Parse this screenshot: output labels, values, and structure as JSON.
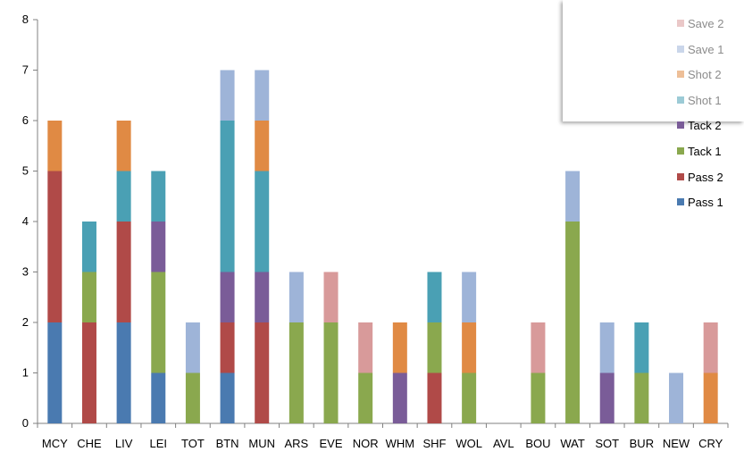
{
  "chart_data": {
    "type": "bar",
    "stacked": true,
    "categories": [
      "MCY",
      "CHE",
      "LIV",
      "LEI",
      "TOT",
      "BTN",
      "MUN",
      "ARS",
      "EVE",
      "NOR",
      "WHM",
      "SHF",
      "WOL",
      "AVL",
      "BOU",
      "WAT",
      "SOT",
      "BUR",
      "NEW",
      "CRY"
    ],
    "series": [
      {
        "name": "Pass 1",
        "color": "#4a7ab0",
        "values": [
          2,
          0,
          2,
          1,
          0,
          1,
          0,
          0,
          0,
          0,
          0,
          0,
          0,
          0,
          0,
          0,
          0,
          0,
          0,
          0
        ]
      },
      {
        "name": "Pass 2",
        "color": "#b04a48",
        "values": [
          3,
          2,
          2,
          0,
          0,
          1,
          2,
          0,
          0,
          0,
          0,
          1,
          0,
          0,
          0,
          0,
          0,
          0,
          0,
          0
        ]
      },
      {
        "name": "Tack 1",
        "color": "#8aa84e",
        "values": [
          0,
          1,
          0,
          2,
          1,
          0,
          0,
          2,
          2,
          1,
          0,
          1,
          1,
          0,
          1,
          4,
          0,
          1,
          0,
          0
        ]
      },
      {
        "name": "Tack 2",
        "color": "#7a5c98",
        "values": [
          0,
          0,
          0,
          1,
          0,
          1,
          1,
          0,
          0,
          0,
          1,
          0,
          0,
          0,
          0,
          0,
          1,
          0,
          0,
          0
        ]
      },
      {
        "name": "Shot 1",
        "color": "#4aa0b4",
        "values": [
          0,
          1,
          1,
          1,
          0,
          3,
          2,
          0,
          0,
          0,
          0,
          1,
          0,
          0,
          0,
          0,
          0,
          1,
          0,
          0
        ]
      },
      {
        "name": "Shot 2",
        "color": "#e08a44",
        "values": [
          1,
          0,
          1,
          0,
          0,
          0,
          1,
          0,
          0,
          0,
          1,
          0,
          1,
          0,
          0,
          0,
          0,
          0,
          0,
          1
        ]
      },
      {
        "name": "Save 1",
        "color": "#9eb4d8",
        "values": [
          0,
          0,
          0,
          0,
          1,
          1,
          1,
          1,
          0,
          0,
          0,
          0,
          1,
          0,
          0,
          1,
          1,
          0,
          1,
          0
        ]
      },
      {
        "name": "Save 2",
        "color": "#d89a9a",
        "values": [
          0,
          0,
          0,
          0,
          0,
          0,
          0,
          0,
          1,
          1,
          0,
          0,
          0,
          0,
          1,
          0,
          0,
          0,
          0,
          1
        ]
      }
    ],
    "ylim": [
      0,
      8
    ],
    "yticks": [
      0,
      1,
      2,
      3,
      4,
      5,
      6,
      7,
      8
    ],
    "legend": {
      "placement": "top-right",
      "order": [
        "Save 2",
        "Save 1",
        "Shot 2",
        "Shot 1",
        "Tack 2",
        "Tack 1",
        "Pass 2",
        "Pass 1"
      ],
      "faded": [
        "Save 2",
        "Save 1",
        "Shot 2",
        "Shot 1"
      ]
    },
    "grid": false
  }
}
